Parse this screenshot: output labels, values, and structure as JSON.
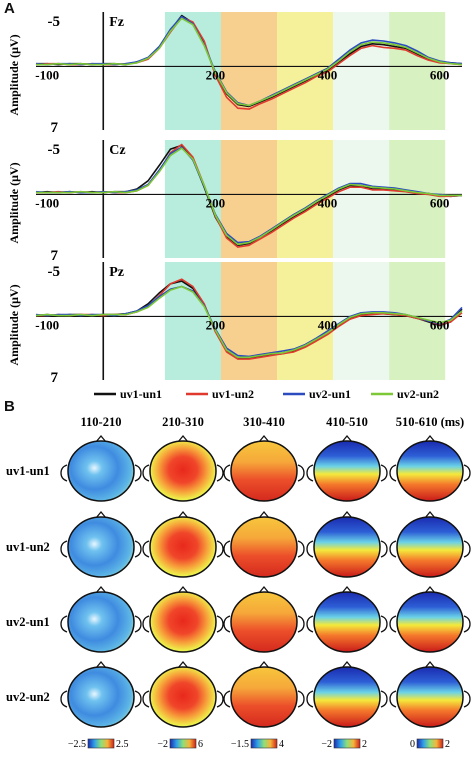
{
  "panels": {
    "a_label": "A",
    "b_label": "B"
  },
  "chart_data": [
    {
      "type": "line",
      "panel": "A",
      "subplots": [
        {
          "title": "Fz",
          "x": [
            -120,
            -100,
            -80,
            -60,
            -40,
            -20,
            0,
            20,
            40,
            60,
            80,
            100,
            120,
            140,
            160,
            180,
            200,
            220,
            240,
            260,
            280,
            300,
            320,
            340,
            360,
            380,
            400,
            420,
            440,
            460,
            480,
            500,
            520,
            540,
            560,
            580,
            600,
            620,
            640
          ],
          "series": [
            {
              "name": "uv1-un1",
              "values": [
                -0.3,
                -0.3,
                -0.2,
                -0.3,
                -0.3,
                -0.2,
                -0.3,
                -0.3,
                -0.2,
                -0.5,
                -0.9,
                -2.1,
                -4.0,
                -5.6,
                -4.8,
                -2.5,
                0.8,
                3.0,
                4.2,
                4.4,
                3.9,
                3.4,
                2.8,
                2.2,
                1.6,
                1.0,
                0.5,
                -0.4,
                -1.4,
                -2.2,
                -2.5,
                -2.4,
                -2.2,
                -2.0,
                -1.4,
                -0.8,
                -0.5,
                -0.4,
                -0.3
              ]
            },
            {
              "name": "uv1-un2",
              "values": [
                -0.2,
                -0.3,
                -0.3,
                -0.2,
                -0.2,
                -0.3,
                -0.2,
                -0.2,
                -0.3,
                -0.4,
                -0.8,
                -2.0,
                -3.8,
                -5.4,
                -4.9,
                -2.8,
                1.0,
                3.4,
                4.6,
                4.7,
                4.1,
                3.6,
                3.0,
                2.4,
                1.8,
                1.1,
                0.6,
                -0.3,
                -1.2,
                -2.0,
                -2.3,
                -2.1,
                -2.0,
                -1.8,
                -1.2,
                -0.7,
                -0.4,
                -0.3,
                -0.2
              ]
            },
            {
              "name": "uv2-un1",
              "values": [
                -0.3,
                -0.2,
                -0.3,
                -0.3,
                -0.2,
                -0.3,
                -0.3,
                -0.2,
                -0.3,
                -0.5,
                -1.0,
                -2.2,
                -4.1,
                -5.5,
                -4.7,
                -2.4,
                0.6,
                2.8,
                4.0,
                4.3,
                3.8,
                3.2,
                2.6,
                2.0,
                1.4,
                0.8,
                0.2,
                -0.8,
                -1.8,
                -2.6,
                -2.9,
                -2.8,
                -2.6,
                -2.3,
                -1.7,
                -1.0,
                -0.6,
                -0.4,
                -0.3
              ]
            },
            {
              "name": "uv2-un2",
              "values": [
                -0.2,
                -0.2,
                -0.3,
                -0.2,
                -0.3,
                -0.2,
                -0.2,
                -0.3,
                -0.2,
                -0.4,
                -0.9,
                -2.0,
                -3.9,
                -5.3,
                -4.6,
                -2.3,
                0.7,
                2.9,
                4.1,
                4.3,
                3.8,
                3.3,
                2.7,
                2.1,
                1.5,
                0.9,
                0.3,
                -0.6,
                -1.6,
                -2.4,
                -2.7,
                -2.6,
                -2.4,
                -2.1,
                -1.5,
                -0.9,
                -0.5,
                -0.3,
                -0.2
              ]
            }
          ]
        },
        {
          "title": "Cz",
          "x": [
            -120,
            -100,
            -80,
            -60,
            -40,
            -20,
            0,
            20,
            40,
            60,
            80,
            100,
            120,
            140,
            160,
            180,
            200,
            220,
            240,
            260,
            280,
            300,
            320,
            340,
            360,
            380,
            400,
            420,
            440,
            460,
            480,
            500,
            520,
            540,
            560,
            580,
            600,
            620,
            640
          ],
          "series": [
            {
              "name": "uv1-un1",
              "values": [
                -0.2,
                -0.3,
                -0.2,
                -0.3,
                -0.2,
                -0.3,
                -0.2,
                -0.3,
                -0.3,
                -0.6,
                -1.5,
                -3.2,
                -5.0,
                -5.4,
                -3.9,
                -0.8,
                2.5,
                4.6,
                5.6,
                5.4,
                4.7,
                4.0,
                3.2,
                2.5,
                1.8,
                1.0,
                0.3,
                -0.5,
                -1.0,
                -0.9,
                -0.6,
                -0.6,
                -0.5,
                -0.4,
                -0.2,
                -0.1,
                0.1,
                0.2,
                0.1
              ]
            },
            {
              "name": "uv1-un2",
              "values": [
                -0.2,
                -0.2,
                -0.3,
                -0.2,
                -0.3,
                -0.2,
                -0.3,
                -0.2,
                -0.2,
                -0.4,
                -1.0,
                -2.6,
                -4.6,
                -5.5,
                -4.1,
                -1.0,
                2.4,
                4.8,
                5.8,
                5.6,
                4.9,
                4.2,
                3.4,
                2.6,
                1.9,
                1.1,
                0.4,
                -0.3,
                -0.8,
                -0.8,
                -0.5,
                -0.5,
                -0.4,
                -0.3,
                -0.1,
                0.0,
                0.2,
                0.2,
                0.1
              ]
            },
            {
              "name": "uv2-un1",
              "values": [
                -0.3,
                -0.2,
                -0.2,
                -0.3,
                -0.2,
                -0.2,
                -0.3,
                -0.2,
                -0.3,
                -0.5,
                -1.1,
                -2.7,
                -4.5,
                -5.2,
                -3.8,
                -0.9,
                2.2,
                4.3,
                5.3,
                5.2,
                4.6,
                3.8,
                3.0,
                2.2,
                1.5,
                0.7,
                0.0,
                -0.7,
                -1.2,
                -1.2,
                -0.9,
                -0.8,
                -0.7,
                -0.5,
                -0.3,
                -0.1,
                0.0,
                0.1,
                0.1
              ]
            },
            {
              "name": "uv2-un2",
              "values": [
                -0.2,
                -0.2,
                -0.2,
                -0.2,
                -0.3,
                -0.2,
                -0.2,
                -0.3,
                -0.2,
                -0.4,
                -1.0,
                -2.5,
                -4.3,
                -5.1,
                -3.9,
                -1.0,
                2.3,
                4.5,
                5.5,
                5.3,
                4.7,
                3.9,
                3.1,
                2.3,
                1.6,
                0.8,
                0.1,
                -0.6,
                -1.1,
                -1.0,
                -0.8,
                -0.7,
                -0.6,
                -0.4,
                -0.2,
                -0.1,
                0.1,
                0.1,
                0.1
              ]
            }
          ]
        },
        {
          "title": "Pz",
          "x": [
            -120,
            -100,
            -80,
            -60,
            -40,
            -20,
            0,
            20,
            40,
            60,
            80,
            100,
            120,
            140,
            160,
            180,
            200,
            220,
            240,
            260,
            280,
            300,
            320,
            340,
            360,
            380,
            400,
            420,
            440,
            460,
            480,
            500,
            520,
            540,
            560,
            580,
            600,
            620,
            640
          ],
          "series": [
            {
              "name": "uv1-un1",
              "values": [
                -0.1,
                -0.2,
                -0.1,
                -0.2,
                -0.2,
                -0.1,
                -0.2,
                -0.2,
                -0.3,
                -0.6,
                -1.4,
                -2.6,
                -3.6,
                -3.9,
                -3.1,
                -1.3,
                1.6,
                3.8,
                4.6,
                4.6,
                4.4,
                4.2,
                4.1,
                3.8,
                3.3,
                2.6,
                1.9,
                1.0,
                0.2,
                -0.2,
                -0.3,
                -0.3,
                -0.2,
                -0.1,
                0.2,
                0.6,
                1.0,
                0.6,
                -0.8
              ]
            },
            {
              "name": "uv1-un2",
              "values": [
                -0.1,
                -0.1,
                -0.2,
                -0.1,
                -0.2,
                -0.2,
                -0.1,
                -0.2,
                -0.2,
                -0.5,
                -1.1,
                -2.3,
                -3.6,
                -4.1,
                -3.3,
                -1.4,
                1.7,
                3.9,
                4.7,
                4.7,
                4.5,
                4.3,
                4.1,
                3.9,
                3.4,
                2.7,
                2.0,
                1.1,
                0.3,
                -0.1,
                -0.2,
                -0.3,
                -0.2,
                -0.1,
                0.2,
                0.5,
                0.9,
                0.6,
                -0.4
              ]
            },
            {
              "name": "uv2-un1",
              "values": [
                -0.2,
                -0.1,
                -0.2,
                -0.2,
                -0.1,
                -0.2,
                -0.2,
                -0.1,
                -0.3,
                -0.6,
                -1.2,
                -2.2,
                -3.0,
                -3.3,
                -2.8,
                -1.2,
                1.4,
                3.5,
                4.3,
                4.4,
                4.2,
                4.0,
                3.8,
                3.6,
                3.1,
                2.4,
                1.6,
                0.8,
                0.0,
                -0.4,
                -0.5,
                -0.5,
                -0.4,
                -0.2,
                0.1,
                0.5,
                0.8,
                0.3,
                -1.0
              ]
            },
            {
              "name": "uv2-un2",
              "values": [
                -0.1,
                -0.2,
                -0.1,
                -0.1,
                -0.2,
                -0.1,
                -0.2,
                -0.2,
                -0.2,
                -0.5,
                -1.0,
                -2.0,
                -2.9,
                -3.3,
                -2.7,
                -1.1,
                1.5,
                3.7,
                4.5,
                4.5,
                4.3,
                4.1,
                4.0,
                3.7,
                3.2,
                2.5,
                1.8,
                0.9,
                0.1,
                -0.3,
                -0.4,
                -0.4,
                -0.3,
                -0.2,
                0.1,
                0.4,
                0.7,
                0.4,
                -0.6
              ]
            }
          ]
        }
      ],
      "ylabel": "Amplitude (μV)",
      "ytick_labels": [
        "-5",
        "7"
      ],
      "xtick_labels": [
        "-100",
        "200",
        "400",
        "600"
      ],
      "xlim": [
        -120,
        640
      ],
      "ylim": [
        -6,
        7
      ],
      "y_inverted": true,
      "shaded_windows": [
        {
          "range": [
            110,
            210
          ],
          "color": "#b8ecdc"
        },
        {
          "range": [
            210,
            310
          ],
          "color": "#f7cf8f"
        },
        {
          "range": [
            310,
            410
          ],
          "color": "#f5f09a"
        },
        {
          "range": [
            410,
            510
          ],
          "color": "#ecf8ee"
        },
        {
          "range": [
            510,
            610
          ],
          "color": "#d8f1c0"
        }
      ],
      "legend": [
        {
          "name": "uv1-un1",
          "color": "#111111"
        },
        {
          "name": "uv1-un2",
          "color": "#e03a2f"
        },
        {
          "name": "uv2-un1",
          "color": "#2b4cc0"
        },
        {
          "name": "uv2-un2",
          "color": "#7dc836"
        }
      ],
      "legend_placement": "bottom",
      "grid": false
    },
    {
      "type": "heatmap",
      "panel": "B",
      "description_kind": "scalp topographic maps",
      "columns": [
        "110-210",
        "210-310",
        "310-410",
        "410-510",
        "510-610 (ms)"
      ],
      "rows": [
        "uv1-un1",
        "uv1-un2",
        "uv2-un1",
        "uv2-un2"
      ],
      "colorbars": [
        {
          "min_label": "−2.5",
          "max_label": "2.5"
        },
        {
          "min_label": "−2",
          "max_label": "6"
        },
        {
          "min_label": "−1.5",
          "max_label": "4"
        },
        {
          "min_label": "−2",
          "max_label": "2"
        },
        {
          "min_label": "0",
          "max_label": "2"
        }
      ],
      "map_patterns": [
        "cool",
        "hot-center",
        "warm-mixed",
        "blue-top-red-bottom",
        "blue-top-red-bottom"
      ]
    }
  ]
}
